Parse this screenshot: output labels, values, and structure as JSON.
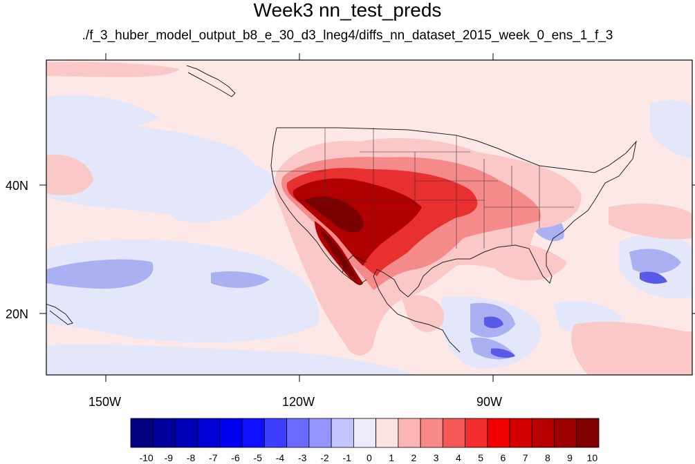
{
  "title": "Week3 nn_test_preds",
  "subtitle": "./f_3_huber_model_output_b8_e_30_d3_lneg4/diffs_nn_dataset_2015_week_0_ens_1_f_3",
  "lon_labels": [
    "150W",
    "120W",
    "90W"
  ],
  "lat_labels": [
    "40N",
    "20N"
  ],
  "colorbar": {
    "labels": [
      "-10",
      "-9",
      "-8",
      "-7",
      "-6",
      "-5",
      "-4",
      "-3",
      "-2",
      "-1",
      "0",
      "1",
      "2",
      "3",
      "4",
      "5",
      "6",
      "7",
      "8",
      "9",
      "10"
    ],
    "colors": [
      "#000080",
      "#00009c",
      "#0000b8",
      "#0000d4",
      "#0000f0",
      "#0f0fff",
      "#3e3eff",
      "#6a6aff",
      "#9595ff",
      "#c4c4ff",
      "#ebebfb",
      "#fde3e3",
      "#fbb4b4",
      "#f98888",
      "#f65858",
      "#f32c2c",
      "#f00000",
      "#d40000",
      "#b80000",
      "#9c0000",
      "#800000"
    ]
  },
  "palette": {
    "ocean_base": "#fde8e8",
    "light_blue": "#e4e6fa",
    "mid_blue": "#aab0f2",
    "strong_blue": "#5a5ae8",
    "light_red": "#fbc8c8",
    "mid_red": "#f58a8a",
    "strong_red": "#e83030",
    "dark_red": "#b00000",
    "darkest_red": "#7a0000"
  }
}
